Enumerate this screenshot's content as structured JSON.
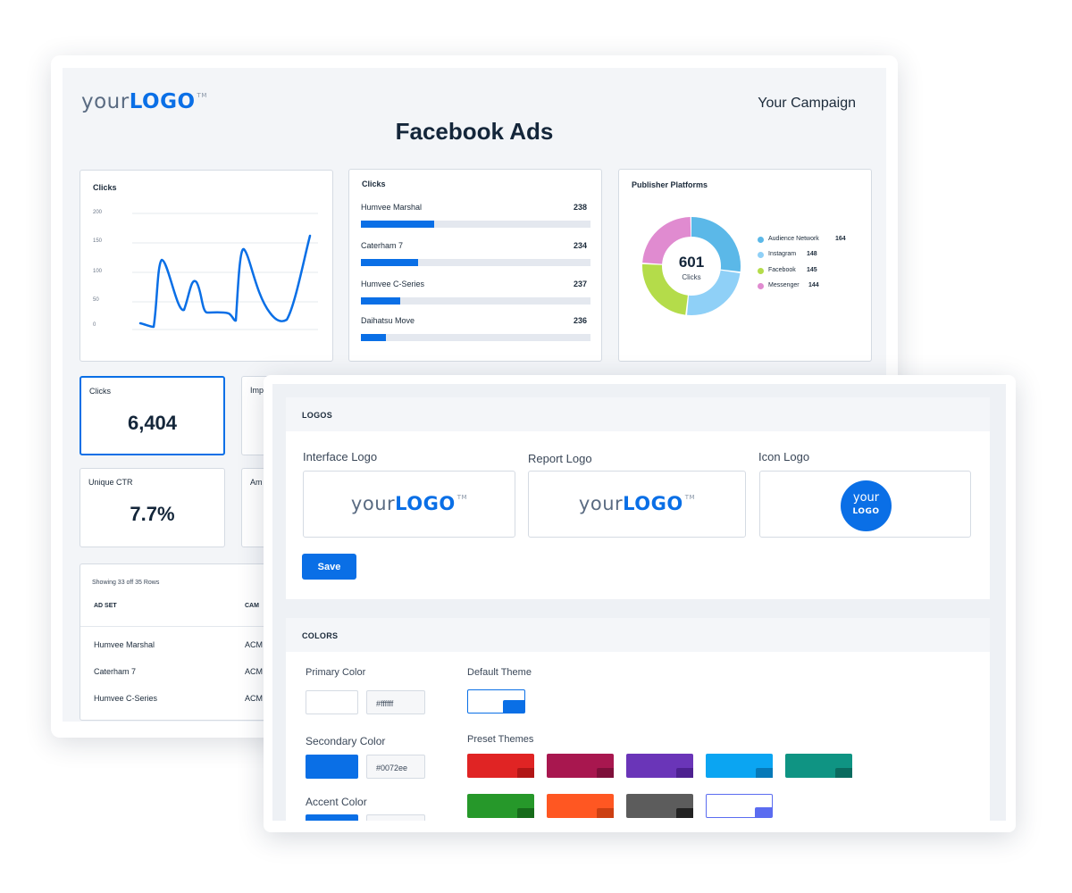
{
  "report": {
    "logo": {
      "your": "your",
      "brand": "LOGO",
      "tm": "TM"
    },
    "campaign": "Your Campaign",
    "title": "Facebook Ads",
    "line_chart": {
      "title": "Clicks",
      "y_ticks": [
        "200",
        "150",
        "100",
        "50",
        "0"
      ]
    },
    "bars": {
      "title": "Clicks",
      "items": [
        {
          "name": "Humvee Marshal",
          "value": "238",
          "fill_pct": 32
        },
        {
          "name": "Caterham 7",
          "value": "234",
          "fill_pct": 25
        },
        {
          "name": "Humvee C-Series",
          "value": "237",
          "fill_pct": 17
        },
        {
          "name": "Daihatsu Move",
          "value": "236",
          "fill_pct": 11
        }
      ]
    },
    "donut": {
      "title": "Publisher Platforms",
      "total": "601",
      "total_label": "Clicks",
      "segments": [
        {
          "name": "Audience Network",
          "value": "164",
          "color": "#5bb8e8"
        },
        {
          "name": "Instagram",
          "value": "148",
          "color": "#8fd0f7"
        },
        {
          "name": "Facebook",
          "value": "145",
          "color": "#b4dc4a"
        },
        {
          "name": "Messenger",
          "value": "144",
          "color": "#e08bd0"
        }
      ]
    },
    "kpis": [
      {
        "label": "Clicks",
        "value": "6,404"
      },
      {
        "label": "Imp",
        "value": ""
      },
      {
        "label": "Unique CTR",
        "value": "7.7%"
      },
      {
        "label": "Am",
        "value": ""
      }
    ],
    "table": {
      "meta": "Showing 33 off 35 Rows",
      "headers": [
        "AD SET",
        "CAM"
      ],
      "rows": [
        [
          "Humvee Marshal",
          "ACM"
        ],
        [
          "Caterham 7",
          "ACM"
        ],
        [
          "Humvee C-Series",
          "ACM"
        ]
      ]
    }
  },
  "settings": {
    "logos": {
      "heading": "LOGOS",
      "interface_label": "Interface Logo",
      "report_label": "Report Logo",
      "icon_label": "Icon Logo",
      "icon_line1": "your",
      "icon_line2": "LOGO",
      "save": "Save"
    },
    "colors": {
      "heading": "COLORS",
      "primary_label": "Primary Color",
      "primary_hex": "#ffffff",
      "primary_color": "#ffffff",
      "secondary_label": "Secondary Color",
      "secondary_hex": "#0072ee",
      "secondary_color": "#0a6fe6",
      "accent_label": "Accent Color",
      "default_theme_label": "Default Theme",
      "preset_label": "Preset Themes",
      "presets": [
        {
          "base": "#e02424",
          "corner": "#b11616"
        },
        {
          "base": "#a8174f",
          "corner": "#7e0f3a"
        },
        {
          "base": "#6a35b8",
          "corner": "#4d2190"
        },
        {
          "base": "#0ba5f2",
          "corner": "#0679b8"
        },
        {
          "base": "#0f9483",
          "corner": "#0a6b5f"
        },
        {
          "base": "#26982a",
          "corner": "#166b1a"
        },
        {
          "base": "#ff5722",
          "corner": "#cc3f12"
        },
        {
          "base": "#5c5c5c",
          "corner": "#222222"
        },
        {
          "base": "#ffffff",
          "corner": "#5b6cf0",
          "outline": "#5b6cf0"
        }
      ]
    }
  }
}
